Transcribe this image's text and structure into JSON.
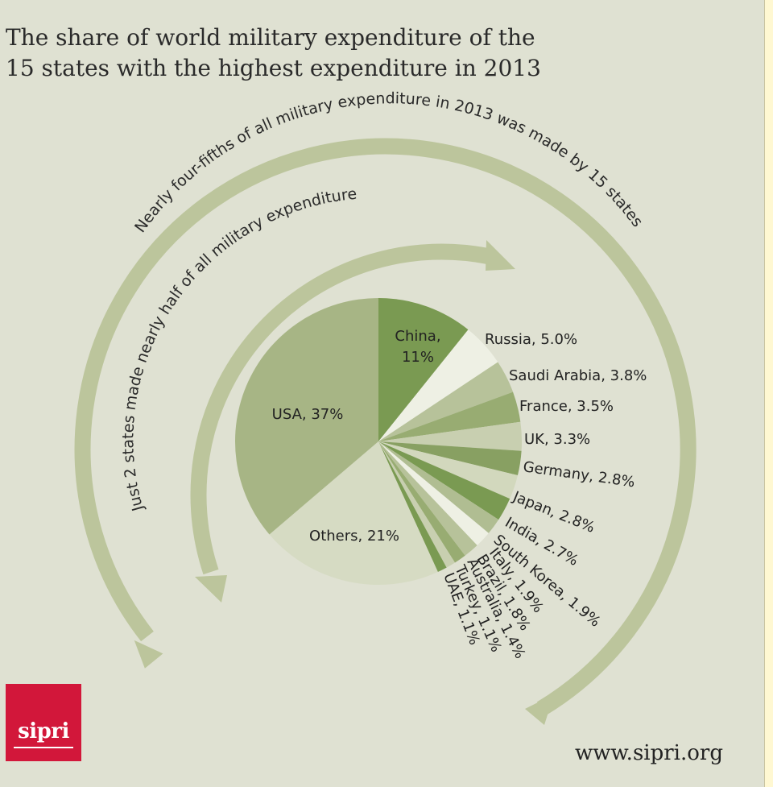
{
  "title_lines": [
    "The share of world military expenditure of the",
    "15 states with the highest expenditure in 2013"
  ],
  "chart_data": {
    "type": "pie",
    "slices": [
      {
        "label": "China, 11%",
        "value": 11.0,
        "color": "#7a9a52"
      },
      {
        "label": "Russia, 5.0%",
        "value": 5.0,
        "color": "#eef0e4"
      },
      {
        "label": "Saudi Arabia, 3.8%",
        "value": 3.8,
        "color": "#b7c29a"
      },
      {
        "label": "France, 3.5%",
        "value": 3.5,
        "color": "#98ac72"
      },
      {
        "label": "UK, 3.3%",
        "value": 3.3,
        "color": "#c8cfb0"
      },
      {
        "label": "Germany, 2.8%",
        "value": 2.8,
        "color": "#88a062"
      },
      {
        "label": "Japan, 2.8%",
        "value": 2.8,
        "color": "#d2d8bd"
      },
      {
        "label": "India, 2.7%",
        "value": 2.7,
        "color": "#7a9a52"
      },
      {
        "label": "South Korea, 1.9%",
        "value": 1.9,
        "color": "#b0bd92"
      },
      {
        "label": "Italy, 1.9%",
        "value": 1.9,
        "color": "#eef0e4"
      },
      {
        "label": "Brazil, 1.8%",
        "value": 1.8,
        "color": "#b7c29a"
      },
      {
        "label": "Australia, 1.4%",
        "value": 1.4,
        "color": "#98ac72"
      },
      {
        "label": "Turkey, 1.1%",
        "value": 1.1,
        "color": "#c8cfb0"
      },
      {
        "label": "UAE, 1.1%",
        "value": 1.1,
        "color": "#7a9a52"
      },
      {
        "label": "Others, 21%",
        "value": 21.0,
        "color": "#d6dbc3"
      },
      {
        "label": "USA, 37%",
        "value": 37.0,
        "color": "#a7b585"
      }
    ],
    "annotations": [
      "Nearly four-fifths of all military expenditure in 2013 was made by 15 states",
      "Just 2 states made nearly half of all military expenditure"
    ]
  },
  "colors": {
    "background": "#dfe1d2",
    "arrow": "#bcc59c",
    "brand": "#d2173a"
  },
  "logo_text": "sipri",
  "url": "www.sipri.org"
}
